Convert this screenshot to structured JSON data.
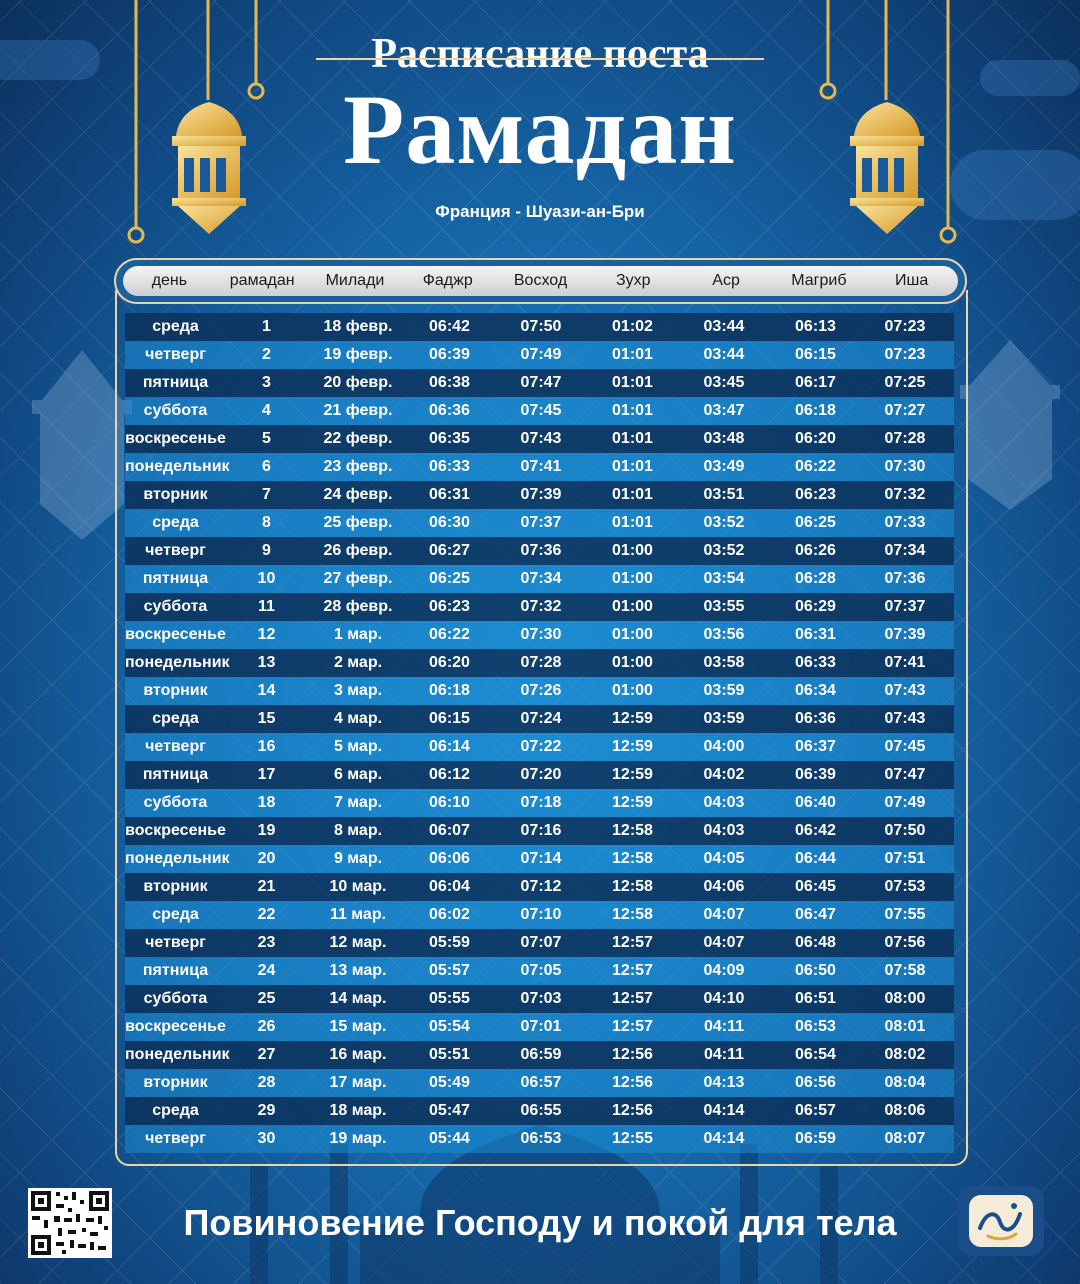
{
  "header": {
    "pre_title": "Расписание поста",
    "title": "Рамадан",
    "location": "Франция - Шуази-ан-Бри"
  },
  "columns": [
    "день",
    "рамадан",
    "Милади",
    "Фаджр",
    "Восход",
    "Зухр",
    "Аср",
    "Магриб",
    "Иша"
  ],
  "rows": [
    [
      "среда",
      "1",
      "18 февр.",
      "06:42",
      "07:50",
      "01:02",
      "03:44",
      "06:13",
      "07:23"
    ],
    [
      "четверг",
      "2",
      "19 февр.",
      "06:39",
      "07:49",
      "01:01",
      "03:44",
      "06:15",
      "07:23"
    ],
    [
      "пятница",
      "3",
      "20 февр.",
      "06:38",
      "07:47",
      "01:01",
      "03:45",
      "06:17",
      "07:25"
    ],
    [
      "суббота",
      "4",
      "21 февр.",
      "06:36",
      "07:45",
      "01:01",
      "03:47",
      "06:18",
      "07:27"
    ],
    [
      "воскресенье",
      "5",
      "22 февр.",
      "06:35",
      "07:43",
      "01:01",
      "03:48",
      "06:20",
      "07:28"
    ],
    [
      "понедельник",
      "6",
      "23 февр.",
      "06:33",
      "07:41",
      "01:01",
      "03:49",
      "06:22",
      "07:30"
    ],
    [
      "вторник",
      "7",
      "24 февр.",
      "06:31",
      "07:39",
      "01:01",
      "03:51",
      "06:23",
      "07:32"
    ],
    [
      "среда",
      "8",
      "25 февр.",
      "06:30",
      "07:37",
      "01:01",
      "03:52",
      "06:25",
      "07:33"
    ],
    [
      "четверг",
      "9",
      "26 февр.",
      "06:27",
      "07:36",
      "01:00",
      "03:52",
      "06:26",
      "07:34"
    ],
    [
      "пятница",
      "10",
      "27 февр.",
      "06:25",
      "07:34",
      "01:00",
      "03:54",
      "06:28",
      "07:36"
    ],
    [
      "суббота",
      "11",
      "28 февр.",
      "06:23",
      "07:32",
      "01:00",
      "03:55",
      "06:29",
      "07:37"
    ],
    [
      "воскресенье",
      "12",
      "1 мар.",
      "06:22",
      "07:30",
      "01:00",
      "03:56",
      "06:31",
      "07:39"
    ],
    [
      "понедельник",
      "13",
      "2 мар.",
      "06:20",
      "07:28",
      "01:00",
      "03:58",
      "06:33",
      "07:41"
    ],
    [
      "вторник",
      "14",
      "3 мар.",
      "06:18",
      "07:26",
      "01:00",
      "03:59",
      "06:34",
      "07:43"
    ],
    [
      "среда",
      "15",
      "4 мар.",
      "06:15",
      "07:24",
      "12:59",
      "03:59",
      "06:36",
      "07:43"
    ],
    [
      "четверг",
      "16",
      "5 мар.",
      "06:14",
      "07:22",
      "12:59",
      "04:00",
      "06:37",
      "07:45"
    ],
    [
      "пятница",
      "17",
      "6 мар.",
      "06:12",
      "07:20",
      "12:59",
      "04:02",
      "06:39",
      "07:47"
    ],
    [
      "суббота",
      "18",
      "7 мар.",
      "06:10",
      "07:18",
      "12:59",
      "04:03",
      "06:40",
      "07:49"
    ],
    [
      "воскресенье",
      "19",
      "8 мар.",
      "06:07",
      "07:16",
      "12:58",
      "04:03",
      "06:42",
      "07:50"
    ],
    [
      "понедельник",
      "20",
      "9 мар.",
      "06:06",
      "07:14",
      "12:58",
      "04:05",
      "06:44",
      "07:51"
    ],
    [
      "вторник",
      "21",
      "10 мар.",
      "06:04",
      "07:12",
      "12:58",
      "04:06",
      "06:45",
      "07:53"
    ],
    [
      "среда",
      "22",
      "11 мар.",
      "06:02",
      "07:10",
      "12:58",
      "04:07",
      "06:47",
      "07:55"
    ],
    [
      "четверг",
      "23",
      "12 мар.",
      "05:59",
      "07:07",
      "12:57",
      "04:07",
      "06:48",
      "07:56"
    ],
    [
      "пятница",
      "24",
      "13 мар.",
      "05:57",
      "07:05",
      "12:57",
      "04:09",
      "06:50",
      "07:58"
    ],
    [
      "суббота",
      "25",
      "14 мар.",
      "05:55",
      "07:03",
      "12:57",
      "04:10",
      "06:51",
      "08:00"
    ],
    [
      "воскресенье",
      "26",
      "15 мар.",
      "05:54",
      "07:01",
      "12:57",
      "04:11",
      "06:53",
      "08:01"
    ],
    [
      "понедельник",
      "27",
      "16 мар.",
      "05:51",
      "06:59",
      "12:56",
      "04:11",
      "06:54",
      "08:02"
    ],
    [
      "вторник",
      "28",
      "17 мар.",
      "05:49",
      "06:57",
      "12:56",
      "04:13",
      "06:56",
      "08:04"
    ],
    [
      "среда",
      "29",
      "18 мар.",
      "05:47",
      "06:55",
      "12:56",
      "04:14",
      "06:57",
      "08:06"
    ],
    [
      "четверг",
      "30",
      "19 мар.",
      "05:44",
      "06:53",
      "12:55",
      "04:14",
      "06:59",
      "08:07"
    ]
  ],
  "footer": {
    "slogan": "Повиновение Господу и покой для тела"
  }
}
